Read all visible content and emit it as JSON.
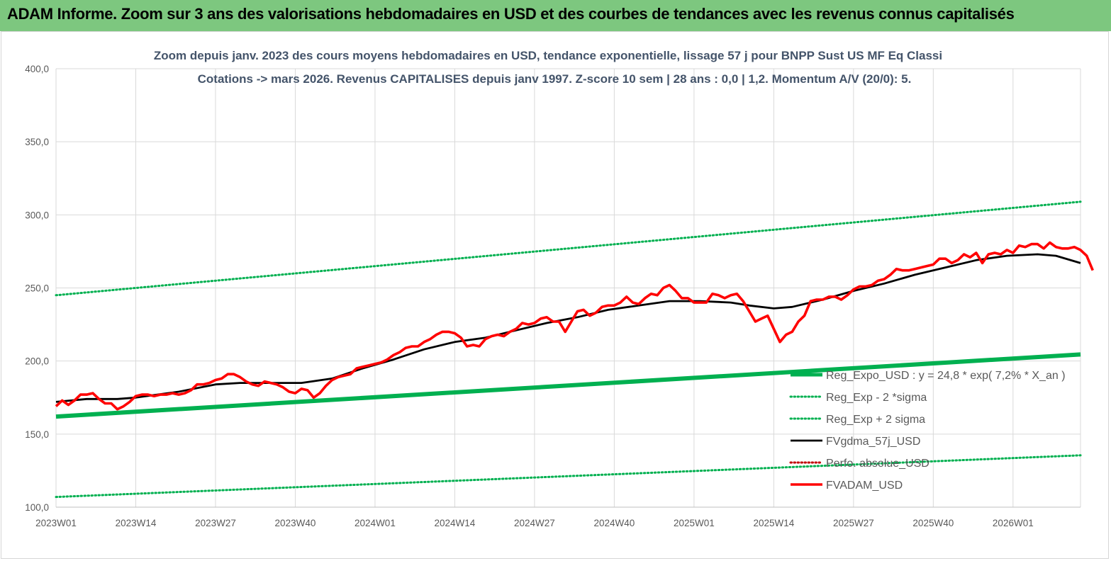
{
  "header": {
    "title": "ADAM Informe. Zoom sur 3 ans des valorisations hebdomadaires en USD et des courbes de tendances avec les revenus connus capitalisés"
  },
  "chart_data": {
    "type": "line",
    "title_line1": "Zoom depuis janv. 2023 des cours moyens hebdomadaires en USD, tendance exponentielle, lissage 57 j pour BNPP Sust US MF Eq Classi",
    "title_line2": "Cotations -> mars 2026. Revenus CAPITALISES depuis janv 1997. Z-score 10 sem | 28 ans : 0,0 | 1,2. Momentum A/V (20/0): 5.",
    "ylim": [
      100,
      400
    ],
    "yticks": [
      "100,0",
      "150,0",
      "200,0",
      "250,0",
      "300,0",
      "350,0",
      "400,0"
    ],
    "xlim": [
      0,
      167
    ],
    "xticks": [
      {
        "x": 0,
        "label": "2023W01"
      },
      {
        "x": 13,
        "label": "2023W14"
      },
      {
        "x": 26,
        "label": "2023W27"
      },
      {
        "x": 39,
        "label": "2023W40"
      },
      {
        "x": 52,
        "label": "2024W01"
      },
      {
        "x": 65,
        "label": "2024W14"
      },
      {
        "x": 78,
        "label": "2024W27"
      },
      {
        "x": 91,
        "label": "2024W40"
      },
      {
        "x": 104,
        "label": "2025W01"
      },
      {
        "x": 117,
        "label": "2025W14"
      },
      {
        "x": 130,
        "label": "2025W27"
      },
      {
        "x": 143,
        "label": "2025W40"
      },
      {
        "x": 156,
        "label": "2026W01"
      }
    ],
    "grid": true,
    "legend_position": "bottom-right",
    "series": [
      {
        "name": "Reg_Expo_USD : y = 24,8 * exp( 7,2% *  X_an )",
        "color": "#00b050",
        "style": "thick",
        "points": [
          [
            0,
            162
          ],
          [
            167,
            204.5
          ]
        ]
      },
      {
        "name": "Reg_Exp - 2 *sigma",
        "color": "#00b050",
        "style": "dotted",
        "points": [
          [
            0,
            107
          ],
          [
            167,
            135.5
          ]
        ]
      },
      {
        "name": "Reg_Exp + 2 sigma",
        "color": "#00b050",
        "style": "dotted",
        "points": [
          [
            0,
            245
          ],
          [
            167,
            309
          ]
        ]
      },
      {
        "name": "FVgdma_57j_USD",
        "color": "#000000",
        "style": "solid",
        "points": [
          [
            0,
            172
          ],
          [
            5,
            174
          ],
          [
            10,
            174
          ],
          [
            13,
            175
          ],
          [
            20,
            179
          ],
          [
            26,
            184
          ],
          [
            30,
            185
          ],
          [
            35,
            185
          ],
          [
            40,
            185
          ],
          [
            45,
            188
          ],
          [
            50,
            195
          ],
          [
            55,
            201
          ],
          [
            60,
            208
          ],
          [
            65,
            213
          ],
          [
            70,
            216
          ],
          [
            75,
            221
          ],
          [
            80,
            226
          ],
          [
            85,
            230
          ],
          [
            90,
            235
          ],
          [
            95,
            238
          ],
          [
            100,
            241
          ],
          [
            105,
            241
          ],
          [
            110,
            240
          ],
          [
            113,
            238
          ],
          [
            117,
            236
          ],
          [
            120,
            237
          ],
          [
            125,
            242
          ],
          [
            130,
            248
          ],
          [
            135,
            253
          ],
          [
            140,
            259
          ],
          [
            145,
            264
          ],
          [
            150,
            269
          ],
          [
            155,
            272
          ],
          [
            160,
            273
          ],
          [
            163,
            272
          ],
          [
            167,
            267
          ]
        ]
      },
      {
        "name": "Perfo. absolue_USD",
        "color": "#c00000",
        "style": "dotted",
        "points": []
      },
      {
        "name": "FVADAM_USD",
        "color": "#ff0000",
        "style": "thick",
        "points": [
          [
            0,
            169
          ],
          [
            1,
            173
          ],
          [
            2,
            170
          ],
          [
            3,
            173
          ],
          [
            4,
            177
          ],
          [
            5,
            177
          ],
          [
            6,
            178
          ],
          [
            7,
            174
          ],
          [
            8,
            171
          ],
          [
            9,
            171
          ],
          [
            10,
            167
          ],
          [
            11,
            169
          ],
          [
            12,
            172
          ],
          [
            13,
            176
          ],
          [
            14,
            177
          ],
          [
            15,
            177
          ],
          [
            16,
            176
          ],
          [
            17,
            177
          ],
          [
            18,
            177
          ],
          [
            19,
            178
          ],
          [
            20,
            177
          ],
          [
            21,
            178
          ],
          [
            22,
            180
          ],
          [
            23,
            184
          ],
          [
            24,
            184
          ],
          [
            25,
            185
          ],
          [
            26,
            187
          ],
          [
            27,
            188
          ],
          [
            28,
            191
          ],
          [
            29,
            191
          ],
          [
            30,
            189
          ],
          [
            31,
            186
          ],
          [
            32,
            184
          ],
          [
            33,
            183
          ],
          [
            34,
            186
          ],
          [
            35,
            185
          ],
          [
            36,
            184
          ],
          [
            37,
            182
          ],
          [
            38,
            179
          ],
          [
            39,
            178
          ],
          [
            40,
            181
          ],
          [
            41,
            180
          ],
          [
            42,
            175
          ],
          [
            43,
            178
          ],
          [
            44,
            183
          ],
          [
            45,
            187
          ],
          [
            46,
            189
          ],
          [
            47,
            190
          ],
          [
            48,
            191
          ],
          [
            49,
            195
          ],
          [
            50,
            196
          ],
          [
            51,
            197
          ],
          [
            52,
            198
          ],
          [
            53,
            199
          ],
          [
            54,
            201
          ],
          [
            55,
            204
          ],
          [
            56,
            206
          ],
          [
            57,
            209
          ],
          [
            58,
            210
          ],
          [
            59,
            210
          ],
          [
            60,
            213
          ],
          [
            61,
            215
          ],
          [
            62,
            218
          ],
          [
            63,
            220
          ],
          [
            64,
            220
          ],
          [
            65,
            219
          ],
          [
            66,
            216
          ],
          [
            67,
            210
          ],
          [
            68,
            211
          ],
          [
            69,
            210
          ],
          [
            70,
            215
          ],
          [
            71,
            217
          ],
          [
            72,
            218
          ],
          [
            73,
            217
          ],
          [
            74,
            220
          ],
          [
            75,
            222
          ],
          [
            76,
            226
          ],
          [
            77,
            225
          ],
          [
            78,
            226
          ],
          [
            79,
            229
          ],
          [
            80,
            230
          ],
          [
            81,
            227
          ],
          [
            82,
            227
          ],
          [
            83,
            220
          ],
          [
            84,
            227
          ],
          [
            85,
            234
          ],
          [
            86,
            235
          ],
          [
            87,
            231
          ],
          [
            88,
            233
          ],
          [
            89,
            237
          ],
          [
            90,
            238
          ],
          [
            91,
            238
          ],
          [
            92,
            240
          ],
          [
            93,
            244
          ],
          [
            94,
            240
          ],
          [
            95,
            239
          ],
          [
            96,
            243
          ],
          [
            97,
            246
          ],
          [
            98,
            245
          ],
          [
            99,
            250
          ],
          [
            100,
            252
          ],
          [
            101,
            248
          ],
          [
            102,
            243
          ],
          [
            103,
            243
          ],
          [
            104,
            240
          ],
          [
            105,
            240
          ],
          [
            106,
            240
          ],
          [
            107,
            246
          ],
          [
            108,
            245
          ],
          [
            109,
            243
          ],
          [
            110,
            245
          ],
          [
            111,
            246
          ],
          [
            112,
            241
          ],
          [
            113,
            234
          ],
          [
            114,
            227
          ],
          [
            115,
            229
          ],
          [
            116,
            231
          ],
          [
            117,
            222
          ],
          [
            118,
            213
          ],
          [
            119,
            218
          ],
          [
            120,
            220
          ],
          [
            121,
            227
          ],
          [
            122,
            231
          ],
          [
            123,
            241
          ],
          [
            124,
            242
          ],
          [
            125,
            242
          ],
          [
            126,
            244
          ],
          [
            127,
            244
          ],
          [
            128,
            242
          ],
          [
            129,
            245
          ],
          [
            130,
            249
          ],
          [
            131,
            251
          ],
          [
            132,
            251
          ],
          [
            133,
            252
          ],
          [
            134,
            255
          ],
          [
            135,
            256
          ],
          [
            136,
            259
          ],
          [
            137,
            263
          ],
          [
            138,
            262
          ],
          [
            139,
            262
          ],
          [
            140,
            263
          ],
          [
            141,
            264
          ],
          [
            142,
            265
          ],
          [
            143,
            266
          ],
          [
            144,
            270
          ],
          [
            145,
            270
          ],
          [
            146,
            267
          ],
          [
            147,
            269
          ],
          [
            148,
            273
          ],
          [
            149,
            271
          ],
          [
            150,
            274
          ],
          [
            151,
            267
          ],
          [
            152,
            273
          ],
          [
            153,
            274
          ],
          [
            154,
            273
          ],
          [
            155,
            276
          ],
          [
            156,
            274
          ],
          [
            157,
            279
          ],
          [
            158,
            278
          ],
          [
            159,
            280
          ],
          [
            160,
            280
          ],
          [
            161,
            277
          ],
          [
            162,
            281
          ],
          [
            163,
            278
          ],
          [
            164,
            277
          ],
          [
            165,
            277
          ],
          [
            166,
            278
          ],
          [
            167,
            276
          ],
          [
            168,
            272
          ],
          [
            169,
            262
          ]
        ]
      }
    ]
  }
}
